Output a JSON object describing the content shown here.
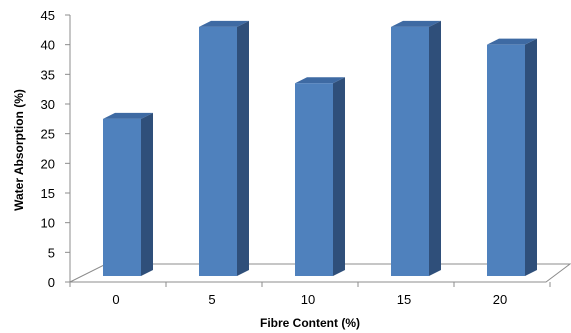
{
  "chart_data": {
    "type": "bar",
    "style": "3d-column",
    "categories": [
      "0",
      "5",
      "10",
      "15",
      "20"
    ],
    "values": [
      27.5,
      43,
      33.5,
      43,
      40
    ],
    "xlabel": "Fibre Content (%)",
    "ylabel": "Water Absorption (%)",
    "ylim": [
      0,
      45
    ],
    "yticks": [
      0,
      5,
      10,
      15,
      20,
      25,
      30,
      35,
      40,
      45
    ],
    "grid": false,
    "colors": {
      "front": "#4F81BD",
      "side": "#2F4F7A",
      "top": "#3E6AA3"
    }
  }
}
